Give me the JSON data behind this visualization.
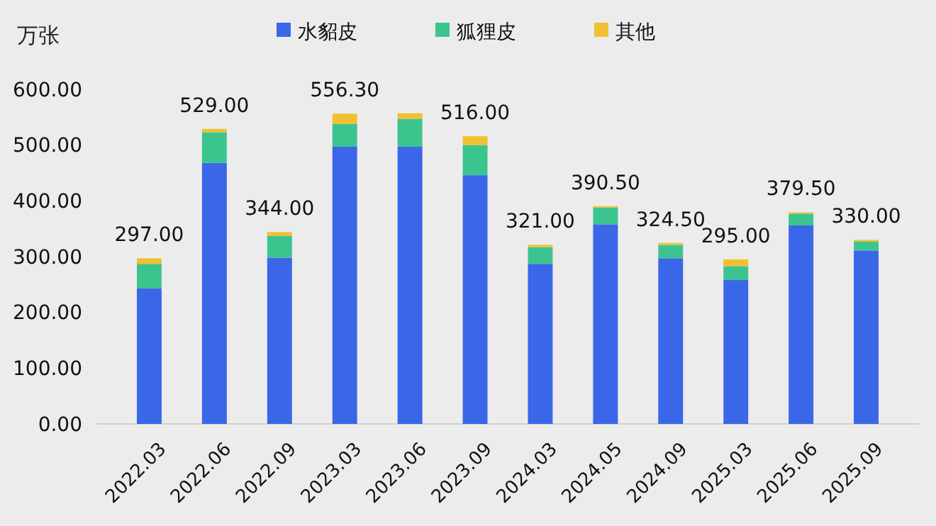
{
  "chart_data": {
    "type": "bar",
    "stacked": true,
    "ylabel": "万张",
    "categories": [
      "2022.03",
      "2022.06",
      "2022.09",
      "2023.03",
      "2023.06",
      "2023.09",
      "2024.03",
      "2024.05",
      "2024.09",
      "2025.03",
      "2025.06",
      "2025.09"
    ],
    "series": [
      {
        "name": "水貂皮",
        "color": "#3a66e8",
        "values": [
          243,
          468,
          298,
          497,
          497,
          446,
          287,
          358,
          297,
          258,
          356,
          311
        ]
      },
      {
        "name": "狐狸皮",
        "color": "#3cc48f",
        "values": [
          44,
          55,
          39,
          41,
          50,
          54,
          30,
          30,
          24,
          25,
          21,
          16
        ]
      },
      {
        "name": "其他",
        "color": "#f0c030",
        "values": [
          10,
          6,
          7,
          18.3,
          10,
          16,
          4,
          2.5,
          3.5,
          12,
          2.5,
          3
        ]
      }
    ],
    "totals": [
      "297.00",
      "529.00",
      "344.00",
      "556.30",
      null,
      "516.00",
      "321.00",
      "390.50",
      "324.50",
      "295.00",
      "379.50",
      "330.00"
    ],
    "ylim": [
      0,
      600
    ],
    "yticks": [
      {
        "value": 0,
        "label": "0.00"
      },
      {
        "value": 100,
        "label": "100.00"
      },
      {
        "value": 200,
        "label": "200.00"
      },
      {
        "value": 300,
        "label": "300.00"
      },
      {
        "value": 400,
        "label": "400.00"
      },
      {
        "value": 500,
        "label": "500.00"
      },
      {
        "value": 600,
        "label": "600.00"
      }
    ],
    "grid": false,
    "legend": "top"
  }
}
